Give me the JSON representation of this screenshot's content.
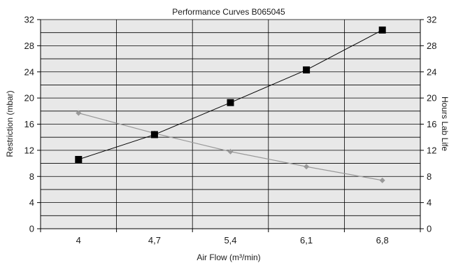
{
  "chart_data": {
    "type": "line",
    "title": "Performance Curves B065045",
    "xlabel": "Air Flow (m³/min)",
    "ylabel_left": "Restriction (mbar)",
    "ylabel_right": "Hours Lab Life",
    "categories": [
      "4",
      "4,7",
      "5,4",
      "6,1",
      "6,8"
    ],
    "ylim": [
      0,
      32
    ],
    "y_ticks": [
      "0",
      "4",
      "8",
      "12",
      "16",
      "20",
      "24",
      "28",
      "32"
    ],
    "grid": true,
    "legend": "none",
    "series": [
      {
        "axis": "left",
        "marker": "square",
        "color": "#000000",
        "values": [
          10.6,
          14.4,
          19.3,
          24.3,
          30.4
        ]
      },
      {
        "axis": "right",
        "marker": "diamond",
        "color": "#999999",
        "values": [
          17.7,
          14.6,
          11.8,
          9.5,
          7.4
        ]
      }
    ],
    "plot_bg": "#e8e8e8",
    "grid_color": "#000000"
  }
}
